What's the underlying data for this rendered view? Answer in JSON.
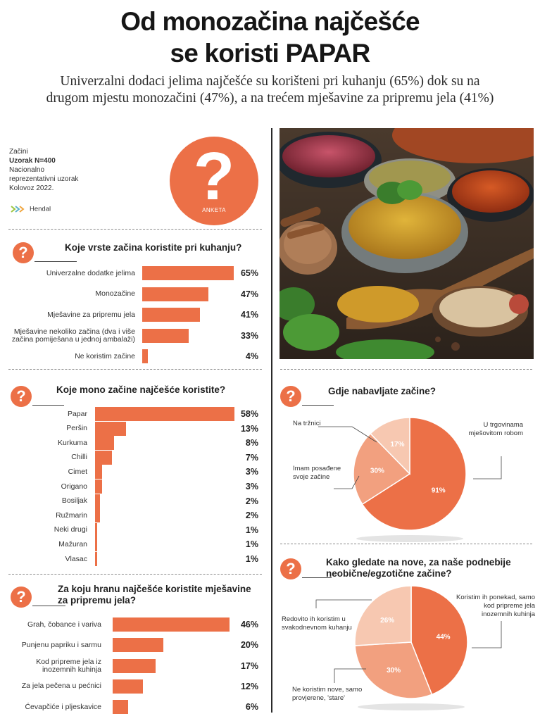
{
  "header": {
    "title_line1": "Od monozačina najčešće",
    "title_line2": "se koristi PAPAR",
    "subtitle_line1": "Univerzalni dodaci jelima najčešće su korišteni pri kuhanju (65%) dok su na",
    "subtitle_line2": "drugom mjestu monozačini (47%), a na trećem mješavine za pripremu jela (41%)"
  },
  "meta": {
    "topic": "Začini",
    "sample": "Uzorak N=400",
    "line3": "Nacionalno",
    "line4": "reprezentativni uzorak",
    "date": "Kolovoz 2022.",
    "brand": "Hendal",
    "badge_label": "ANKETA",
    "question_mark": "?"
  },
  "colors": {
    "accent": "#ec7047",
    "pie_dark": "#ec7047",
    "pie_mid": "#f2a07f",
    "pie_light": "#f7c8b1"
  },
  "icons": [
    "question-icon",
    "hendal-logo-icon"
  ],
  "chart_data": [
    {
      "type": "bar",
      "title": "Koje vrste začina koristite pri kuhanju?",
      "categories": [
        "Univerzalne dodatke jelima",
        "Monozačine",
        "Mješavine za pripremu jela",
        "Mješavine nekoliko začina (dva i više začina pomiješana u jednoj ambalaži)",
        "Ne koristim začine"
      ],
      "values": [
        65,
        47,
        41,
        33,
        4
      ],
      "value_labels": [
        "65%",
        "47%",
        "41%",
        "33%",
        "4%"
      ],
      "xlim": [
        0,
        65
      ],
      "grid": false
    },
    {
      "type": "bar",
      "title": "Koje mono začine najčešće koristite?",
      "categories": [
        "Papar",
        "Peršin",
        "Kurkuma",
        "Chilli",
        "Cimet",
        "Origano",
        "Bosiljak",
        "Ružmarin",
        "Neki drugi",
        "Mažuran",
        "Vlasac"
      ],
      "values": [
        58,
        13,
        8,
        7,
        3,
        3,
        2,
        2,
        1,
        1,
        1
      ],
      "value_labels": [
        "58%",
        "13%",
        "8%",
        "7%",
        "3%",
        "3%",
        "2%",
        "2%",
        "1%",
        "1%",
        "1%"
      ],
      "xlim": [
        0,
        58
      ],
      "grid": false
    },
    {
      "type": "bar",
      "title": "Za koju hranu najčešće koristite mješavine za pripremu jela?",
      "categories": [
        "Grah, čobance i variva",
        "Punjenu papriku i sarmu",
        "Kod pripreme jela iz inozemnih kuhinja",
        "Za jela pečena u pećnici",
        "Ćevapčiće i pljeskavice"
      ],
      "values": [
        46,
        20,
        17,
        12,
        6
      ],
      "value_labels": [
        "46%",
        "20%",
        "17%",
        "12%",
        "6%"
      ],
      "xlim": [
        0,
        46
      ],
      "grid": false
    },
    {
      "type": "pie",
      "title": "Gdje nabavljate začine?",
      "slices": [
        {
          "label": "U trgovinama mješovitom robom",
          "value": 91,
          "value_label": "91%"
        },
        {
          "label": "Imam posađene svoje začine",
          "value": 30,
          "value_label": "30%"
        },
        {
          "label": "Na tržnici",
          "value": 17,
          "value_label": "17%"
        }
      ]
    },
    {
      "type": "pie",
      "title": "Kako gledate na nove, za naše podnebije neobične/egzotične začine?",
      "slices": [
        {
          "label": "Koristim ih ponekad, samo kod pripreme jela inozemnih kuhinja",
          "value": 44,
          "value_label": "44%"
        },
        {
          "label": "Ne koristim nove, samo provjerene, 'stare'",
          "value": 30,
          "value_label": "30%"
        },
        {
          "label": "Redovito ih koristim u svakodnevnom kuhanju",
          "value": 26,
          "value_label": "26%"
        }
      ]
    }
  ]
}
